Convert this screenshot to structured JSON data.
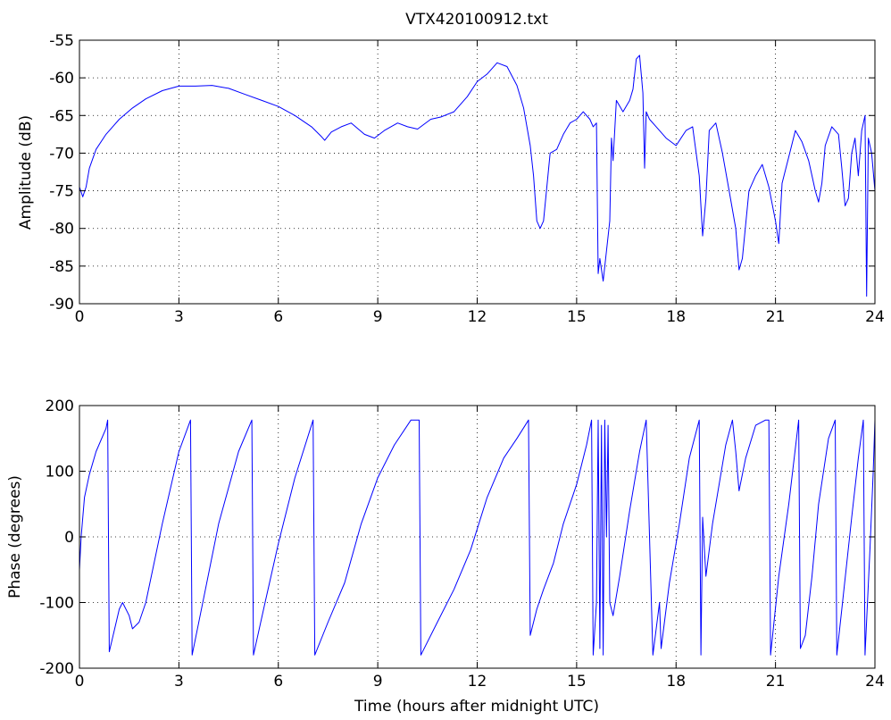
{
  "figure": {
    "title": "VTX420100912.txt",
    "line_color": "#0000ff"
  },
  "chart_data": [
    {
      "type": "line",
      "title": "VTX420100912.txt",
      "xlabel": "",
      "ylabel": "Amplitude (dB)",
      "xlim": [
        0,
        24
      ],
      "ylim": [
        -90,
        -55
      ],
      "xticks": [
        0,
        3,
        6,
        9,
        12,
        15,
        18,
        21,
        24
      ],
      "yticks": [
        -90,
        -85,
        -80,
        -75,
        -70,
        -65,
        -60,
        -55
      ],
      "grid": true,
      "series": [
        {
          "x": [
            0.0,
            0.1,
            0.2,
            0.3,
            0.5,
            0.8,
            1.2,
            1.6,
            2.0,
            2.5,
            3.0,
            3.5,
            4.0,
            4.5,
            5.0,
            5.5,
            6.0,
            6.5,
            7.0,
            7.3,
            7.4,
            7.6,
            7.9,
            8.2,
            8.6,
            8.9,
            9.2,
            9.6,
            9.9,
            10.2,
            10.6,
            10.9,
            11.3,
            11.7,
            12.0,
            12.3,
            12.6,
            12.9,
            13.2,
            13.4,
            13.6,
            13.7,
            13.8,
            13.9,
            14.0,
            14.2,
            14.4,
            14.6,
            14.8,
            15.0,
            15.2,
            15.4,
            15.5,
            15.6,
            15.65,
            15.7,
            15.8,
            15.9,
            16.0,
            16.05,
            16.1,
            16.2,
            16.4,
            16.6,
            16.7,
            16.8,
            16.9,
            17.0,
            17.05,
            17.1,
            17.2,
            17.4,
            17.7,
            18.0,
            18.3,
            18.5,
            18.7,
            18.8,
            18.9,
            19.0,
            19.2,
            19.4,
            19.6,
            19.8,
            19.9,
            20.0,
            20.2,
            20.4,
            20.6,
            20.8,
            21.0,
            21.1,
            21.2,
            21.4,
            21.6,
            21.8,
            22.0,
            22.2,
            22.3,
            22.4,
            22.5,
            22.7,
            22.9,
            23.0,
            23.1,
            23.2,
            23.3,
            23.4,
            23.5,
            23.6,
            23.7,
            23.75,
            23.8,
            23.9,
            24.0
          ],
          "y": [
            -74.5,
            -75.8,
            -74.5,
            -72,
            -69.5,
            -67.5,
            -65.5,
            -64,
            -62.8,
            -61.7,
            -61.1,
            -61.1,
            -61.0,
            -61.4,
            -62.2,
            -63.0,
            -63.8,
            -65,
            -66.5,
            -67.8,
            -68.3,
            -67.2,
            -66.5,
            -66,
            -67.5,
            -68,
            -67,
            -66,
            -66.5,
            -66.8,
            -65.5,
            -65.2,
            -64.5,
            -62.5,
            -60.5,
            -59.5,
            -58,
            -58.5,
            -61,
            -64,
            -69,
            -73,
            -79,
            -80,
            -79,
            -70,
            -69.5,
            -67.5,
            -66,
            -65.5,
            -64.5,
            -65.5,
            -66.5,
            -66,
            -86,
            -84,
            -87,
            -83,
            -79,
            -68,
            -71,
            -63,
            -64.5,
            -63,
            -61.5,
            -57.5,
            -57,
            -62,
            -72,
            -64.5,
            -65.5,
            -66.5,
            -68,
            -69,
            -67,
            -66.5,
            -73,
            -81,
            -76,
            -67,
            -66,
            -70,
            -75,
            -80,
            -85.5,
            -84,
            -75,
            -73,
            -71.5,
            -74.5,
            -79,
            -82,
            -74,
            -70.5,
            -67,
            -68.5,
            -71,
            -75,
            -76.5,
            -74,
            -69,
            -66.5,
            -67.5,
            -72,
            -77,
            -76,
            -70,
            -68,
            -73,
            -67,
            -65,
            -89,
            -68,
            -70,
            -75
          ]
        }
      ]
    },
    {
      "type": "line",
      "title": "",
      "xlabel": "Time (hours after midnight UTC)",
      "ylabel": "Phase (degrees)",
      "xlim": [
        0,
        24
      ],
      "ylim": [
        -200,
        200
      ],
      "xticks": [
        0,
        3,
        6,
        9,
        12,
        15,
        18,
        21,
        24
      ],
      "yticks": [
        -200,
        -100,
        0,
        100,
        200
      ],
      "grid": true,
      "series": [
        {
          "x": [
            0.0,
            0.05,
            0.15,
            0.3,
            0.5,
            0.8,
            0.85,
            0.9,
            1.2,
            1.3,
            1.5,
            1.6,
            1.8,
            2.0,
            2.5,
            3.0,
            3.35,
            3.4,
            3.8,
            4.2,
            4.8,
            5.2,
            5.25,
            5.6,
            6.0,
            6.5,
            7.05,
            7.1,
            7.5,
            8.0,
            8.5,
            9.0,
            9.5,
            10.0,
            10.25,
            10.3,
            10.8,
            11.3,
            11.8,
            12.3,
            12.8,
            13.2,
            13.55,
            13.6,
            13.8,
            14.0,
            14.3,
            14.6,
            15.0,
            15.3,
            15.45,
            15.5,
            15.6,
            15.65,
            15.7,
            15.75,
            15.8,
            15.85,
            15.9,
            15.95,
            16.0,
            16.1,
            16.3,
            16.6,
            16.9,
            17.1,
            17.3,
            17.5,
            17.55,
            17.8,
            18.1,
            18.4,
            18.7,
            18.75,
            18.8,
            18.9,
            19.1,
            19.3,
            19.5,
            19.7,
            19.8,
            19.9,
            20.1,
            20.4,
            20.7,
            20.8,
            20.85,
            21.1,
            21.4,
            21.7,
            21.75,
            21.9,
            22.1,
            22.3,
            22.6,
            22.8,
            22.85,
            23.0,
            23.3,
            23.5,
            23.65,
            23.7,
            23.85,
            23.95,
            24.0
          ],
          "y": [
            -50,
            0,
            60,
            95,
            130,
            165,
            178,
            -175,
            -110,
            -100,
            -120,
            -140,
            -130,
            -100,
            20,
            130,
            178,
            -180,
            -80,
            20,
            130,
            178,
            -180,
            -100,
            -10,
            90,
            178,
            -180,
            -130,
            -70,
            20,
            90,
            140,
            178,
            178,
            -180,
            -130,
            -80,
            -20,
            60,
            120,
            150,
            178,
            -150,
            -110,
            -80,
            -40,
            20,
            80,
            140,
            178,
            -180,
            -100,
            178,
            -170,
            170,
            -180,
            178,
            0,
            170,
            -100,
            -120,
            -60,
            40,
            130,
            178,
            -180,
            -100,
            -170,
            -70,
            20,
            120,
            178,
            -180,
            30,
            -60,
            20,
            80,
            140,
            178,
            130,
            70,
            120,
            170,
            178,
            178,
            -180,
            -60,
            50,
            178,
            -170,
            -150,
            -60,
            50,
            150,
            178,
            -180,
            -110,
            30,
            120,
            178,
            -180,
            -20,
            100,
            178
          ]
        }
      ]
    }
  ]
}
